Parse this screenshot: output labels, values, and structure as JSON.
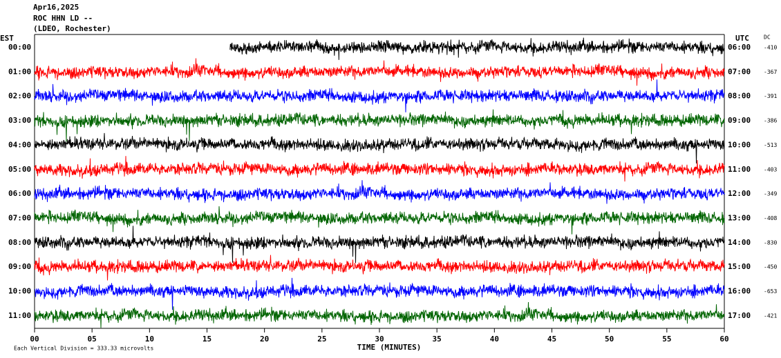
{
  "chart_data": {
    "type": "helicorder",
    "title_lines": [
      "Apr16,2025",
      "ROC HHN LD --",
      "(LDEO, Rochester)"
    ],
    "left_header": "EST",
    "right_header": "UTC",
    "dc_header": "DC",
    "xlabel": "TIME (MINUTES)",
    "footer": "Each Vertical Division =  333.33 microvolts",
    "xlim": [
      0,
      60
    ],
    "xticks": [
      {
        "value": 0,
        "label": "00"
      },
      {
        "value": 5,
        "label": "05"
      },
      10,
      15,
      20,
      25,
      30,
      35,
      40,
      45,
      50,
      55,
      60
    ],
    "rows": [
      {
        "est": "00:00",
        "utc": "06:00",
        "dc": -410,
        "color": "#000000",
        "start": 17
      },
      {
        "est": "01:00",
        "utc": "07:00",
        "dc": -367,
        "color": "#ff0000",
        "start": 0
      },
      {
        "est": "02:00",
        "utc": "08:00",
        "dc": -391,
        "color": "#0000ff",
        "start": 0
      },
      {
        "est": "03:00",
        "utc": "09:00",
        "dc": -386,
        "color": "#006400",
        "start": 0
      },
      {
        "est": "04:00",
        "utc": "10:00",
        "dc": -513,
        "color": "#000000",
        "start": 0
      },
      {
        "est": "05:00",
        "utc": "11:00",
        "dc": -403,
        "color": "#ff0000",
        "start": 0
      },
      {
        "est": "06:00",
        "utc": "12:00",
        "dc": -349,
        "color": "#0000ff",
        "start": 0
      },
      {
        "est": "07:00",
        "utc": "13:00",
        "dc": -408,
        "color": "#006400",
        "start": 0
      },
      {
        "est": "08:00",
        "utc": "14:00",
        "dc": -830,
        "color": "#000000",
        "start": 0
      },
      {
        "est": "09:00",
        "utc": "15:00",
        "dc": -450,
        "color": "#ff0000",
        "start": 0
      },
      {
        "est": "10:00",
        "utc": "16:00",
        "dc": -653,
        "color": "#0000ff",
        "start": 0
      },
      {
        "est": "11:00",
        "utc": "17:00",
        "dc": -421,
        "color": "#006400",
        "start": 0
      }
    ]
  }
}
